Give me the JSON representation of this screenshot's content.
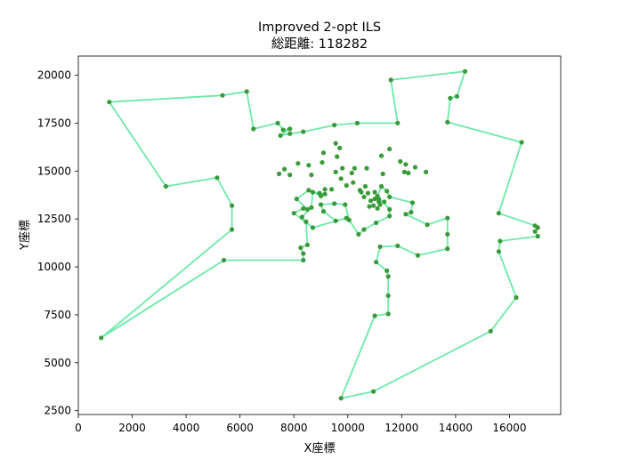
{
  "chart_data": {
    "type": "line",
    "title": "Improved 2-opt ILS",
    "subtitle": "総距離: 118282",
    "xlabel": "X座標",
    "ylabel": "Y座標",
    "xlim": [
      0,
      17900
    ],
    "ylim": [
      2300,
      21000
    ],
    "xticks": [
      0,
      2000,
      4000,
      6000,
      8000,
      10000,
      12000,
      14000,
      16000
    ],
    "yticks": [
      2500,
      5000,
      7500,
      10000,
      12500,
      15000,
      17500,
      20000
    ],
    "grid": false,
    "colors": {
      "route": "#5ce8a0",
      "city": "#3a9a3a"
    },
    "route": [
      [
        1150,
        18600
      ],
      [
        5350,
        18950
      ],
      [
        6250,
        19150
      ],
      [
        6500,
        17200
      ],
      [
        7400,
        17500
      ],
      [
        7600,
        17150
      ],
      [
        7850,
        17200
      ],
      [
        7500,
        16850
      ],
      [
        7850,
        16950
      ],
      [
        8350,
        17050
      ],
      [
        9500,
        17400
      ],
      [
        10350,
        17500
      ],
      [
        11850,
        17500
      ],
      [
        11600,
        19750
      ],
      [
        14350,
        20200
      ],
      [
        14050,
        18900
      ],
      [
        13800,
        18800
      ],
      [
        13700,
        17550
      ],
      [
        16450,
        16500
      ],
      [
        15600,
        12800
      ],
      [
        16950,
        12150
      ],
      [
        17050,
        12050
      ],
      [
        16950,
        11850
      ],
      [
        17050,
        11600
      ],
      [
        15650,
        11350
      ],
      [
        15600,
        10800
      ],
      [
        16250,
        8400
      ],
      [
        15300,
        6650
      ],
      [
        10950,
        3500
      ],
      [
        9750,
        3150
      ],
      [
        11000,
        7450
      ],
      [
        11500,
        7550
      ],
      [
        11500,
        8500
      ],
      [
        11500,
        9500
      ],
      [
        11450,
        9800
      ],
      [
        11050,
        10250
      ],
      [
        11200,
        11050
      ],
      [
        11850,
        11100
      ],
      [
        12600,
        10600
      ],
      [
        13700,
        10950
      ],
      [
        13700,
        11700
      ],
      [
        13700,
        12550
      ],
      [
        12950,
        12200
      ],
      [
        12150,
        12750
      ],
      [
        12350,
        12850
      ],
      [
        12400,
        13350
      ],
      [
        11550,
        13650
      ],
      [
        11450,
        13950
      ],
      [
        11250,
        14200
      ],
      [
        11100,
        13700
      ],
      [
        11550,
        13000
      ],
      [
        11550,
        12650
      ],
      [
        11050,
        12300
      ],
      [
        10600,
        11950
      ],
      [
        10400,
        11700
      ],
      [
        10050,
        12450
      ],
      [
        9900,
        13250
      ],
      [
        9500,
        13300
      ],
      [
        9000,
        13250
      ],
      [
        9100,
        12900
      ],
      [
        9550,
        12400
      ],
      [
        9950,
        12550
      ],
      [
        8700,
        12050
      ],
      [
        8000,
        12800
      ],
      [
        8350,
        13050
      ],
      [
        8500,
        13000
      ],
      [
        8100,
        13550
      ],
      [
        8550,
        14000
      ],
      [
        9000,
        13700
      ],
      [
        9150,
        13800
      ],
      [
        8950,
        13850
      ],
      [
        8700,
        13900
      ],
      [
        8650,
        13100
      ],
      [
        8300,
        12600
      ],
      [
        8450,
        12350
      ],
      [
        8500,
        11150
      ],
      [
        8250,
        11000
      ],
      [
        8350,
        10700
      ],
      [
        8350,
        10350
      ],
      [
        5400,
        10350
      ],
      [
        850,
        6300
      ],
      [
        5700,
        11950
      ],
      [
        5700,
        13200
      ],
      [
        5150,
        14650
      ],
      [
        3250,
        14200
      ],
      [
        1150,
        18600
      ]
    ],
    "cities": [
      [
        7450,
        14850
      ],
      [
        7650,
        15100
      ],
      [
        8150,
        15400
      ],
      [
        8550,
        15300
      ],
      [
        9050,
        15450
      ],
      [
        9600,
        15750
      ],
      [
        9800,
        15150
      ],
      [
        10150,
        14900
      ],
      [
        10250,
        15150
      ],
      [
        10700,
        15150
      ],
      [
        11250,
        15800
      ],
      [
        11550,
        16150
      ],
      [
        11950,
        15500
      ],
      [
        12150,
        15350
      ],
      [
        12500,
        15200
      ],
      [
        12900,
        14950
      ],
      [
        12250,
        14900
      ],
      [
        12100,
        14950
      ],
      [
        11300,
        14850
      ],
      [
        9550,
        14950
      ],
      [
        9950,
        14250
      ],
      [
        10200,
        14400
      ],
      [
        10650,
        14200
      ],
      [
        10500,
        13900
      ],
      [
        10450,
        14000
      ],
      [
        10750,
        13850
      ],
      [
        10600,
        13650
      ],
      [
        10850,
        13450
      ],
      [
        10800,
        13150
      ],
      [
        10950,
        13200
      ],
      [
        11150,
        13400
      ],
      [
        11200,
        13250
      ],
      [
        11100,
        13050
      ],
      [
        11350,
        13400
      ],
      [
        11000,
        13550
      ],
      [
        9100,
        15950
      ],
      [
        9700,
        16200
      ],
      [
        9550,
        16450
      ],
      [
        9150,
        14050
      ],
      [
        9400,
        14050
      ],
      [
        9750,
        14600
      ],
      [
        8650,
        14800
      ],
      [
        7850,
        14800
      ],
      [
        11000,
        13900
      ],
      [
        11150,
        13550
      ]
    ]
  }
}
